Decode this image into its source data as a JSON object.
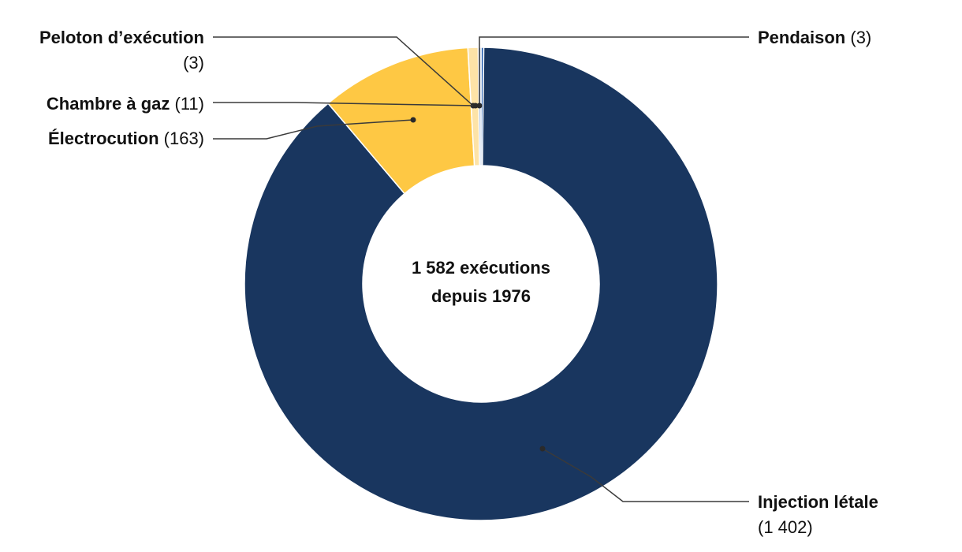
{
  "chart_data": {
    "type": "pie",
    "variant": "donut",
    "center_text": [
      "1 582 exécutions",
      "depuis 1976"
    ],
    "slices": [
      {
        "name": "Injection létale",
        "value": 1402,
        "value_label": "(1 402)",
        "color": "#19365f"
      },
      {
        "name": "Électrocution",
        "value": 163,
        "value_label": "(163)",
        "color": "#fec844"
      },
      {
        "name": "Chambre à gaz",
        "value": 11,
        "value_label": "(11)",
        "color": "#fde3a7"
      },
      {
        "name": "Peloton d’exécution",
        "value": 3,
        "value_label": "(3)",
        "color": "#9fb6d8"
      },
      {
        "name": "Pendaison",
        "value": 3,
        "value_label": "(3)",
        "color": "#2f66b3"
      }
    ],
    "total": 1582
  }
}
